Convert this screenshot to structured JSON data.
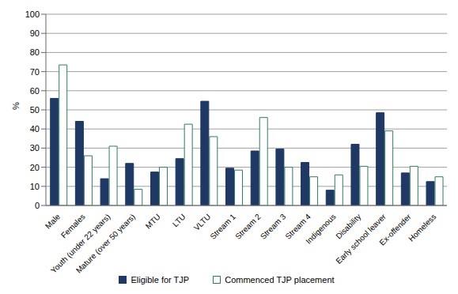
{
  "chart_data": {
    "type": "bar",
    "y_label": "%",
    "categories": [
      "Male",
      "Females",
      "Youth (under 22 years)",
      "Mature (over 50 years)",
      "MTU",
      "LTU",
      "VLTU",
      "Stream 1",
      "Stream 2",
      "Stream 3",
      "Stream 4",
      "Indigenous",
      "Disability",
      "Early school leaver",
      "Ex-offender",
      "Homeless"
    ],
    "series": [
      {
        "name": "Eligible for TJP",
        "color": "#1f3864",
        "values": [
          56,
          44,
          14,
          22,
          17.5,
          24.5,
          54.5,
          19.5,
          28.5,
          29.5,
          22.5,
          8,
          32,
          48.5,
          17,
          12.5
        ]
      },
      {
        "name": "Commenced TJP placement",
        "color": "#2e7d5e",
        "values": [
          73.5,
          26,
          31,
          8.5,
          20,
          42.5,
          36,
          18.5,
          46,
          20,
          15,
          16,
          20.5,
          39,
          20.5,
          15
        ]
      }
    ],
    "ylim": [
      0,
      100
    ],
    "yticks": [
      0,
      10,
      20,
      30,
      40,
      50,
      60,
      70,
      80,
      90,
      100
    ],
    "grid": true,
    "legend": "bottom"
  }
}
